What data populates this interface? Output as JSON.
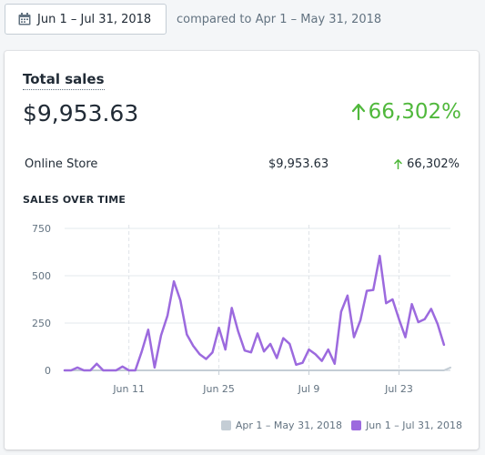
{
  "toolbar": {
    "date_range_label": "Jun 1 – Jul 31, 2018",
    "comparison_text": "compared to Apr 1 – May 31, 2018"
  },
  "card": {
    "title": "Total sales",
    "total_value": "$9,953.63",
    "total_growth": "66,302%",
    "channels": [
      {
        "name": "Online Store",
        "value": "$9,953.63",
        "growth": "66,302%"
      }
    ],
    "section_title": "SALES OVER TIME"
  },
  "colors": {
    "current_series": "#9c6ade",
    "previous_series": "#c4cdd5",
    "growth_positive": "#50b83c"
  },
  "icons": {
    "date_button": "calendar-icon",
    "growth": "arrow-up-icon"
  },
  "chart_data": {
    "type": "line",
    "ylim": [
      0,
      750
    ],
    "yticks": [
      0,
      250,
      500,
      750
    ],
    "xlim": [
      0,
      60
    ],
    "xticks": [
      {
        "day": 10,
        "label": "Jun 11"
      },
      {
        "day": 24,
        "label": "Jun 25"
      },
      {
        "day": 38,
        "label": "Jul 9"
      },
      {
        "day": 52,
        "label": "Jul 23"
      }
    ],
    "grid": true,
    "legend_position": "bottom-right",
    "series": [
      {
        "name": "Apr 1 – May 31, 2018",
        "color": "#c4cdd5",
        "values": [
          0,
          0,
          0,
          0,
          0,
          0,
          0,
          0,
          0,
          0,
          0,
          0,
          0,
          0,
          0,
          0,
          0,
          0,
          0,
          0,
          0,
          0,
          0,
          0,
          0,
          0,
          0,
          0,
          0,
          0,
          0,
          0,
          0,
          0,
          0,
          0,
          0,
          0,
          0,
          0,
          0,
          0,
          0,
          0,
          0,
          0,
          0,
          0,
          0,
          0,
          0,
          0,
          0,
          0,
          0,
          0,
          0,
          0,
          0,
          0,
          15
        ]
      },
      {
        "name": "Jun 1 – Jul 31, 2018",
        "color": "#9c6ade",
        "values": [
          0,
          0,
          15,
          0,
          0,
          35,
          0,
          0,
          0,
          20,
          0,
          0,
          100,
          215,
          15,
          185,
          290,
          470,
          370,
          190,
          130,
          85,
          60,
          95,
          225,
          110,
          330,
          205,
          105,
          95,
          195,
          100,
          140,
          65,
          170,
          140,
          30,
          40,
          110,
          85,
          50,
          110,
          35,
          310,
          395,
          175,
          265,
          420,
          425,
          605,
          355,
          375,
          270,
          175,
          350,
          255,
          270,
          325,
          245,
          135
        ]
      }
    ]
  }
}
